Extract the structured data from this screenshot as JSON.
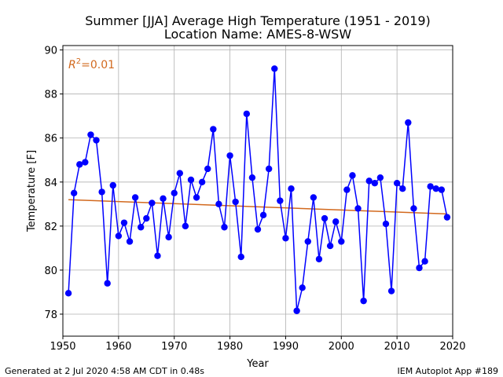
{
  "chart_data": {
    "type": "line",
    "title": "Summer [JJA] Average High Temperature (1951 - 2019)",
    "subtitle": "Location Name: AMES-8-WSW",
    "xlabel": "Year",
    "ylabel": "Temperature [F]",
    "xlim": [
      1950,
      2020
    ],
    "ylim": [
      77,
      90.2
    ],
    "xticks": [
      1950,
      1960,
      1970,
      1980,
      1990,
      2000,
      2010,
      2020
    ],
    "yticks": [
      78,
      80,
      82,
      84,
      86,
      88,
      90
    ],
    "grid": true,
    "annotation": {
      "prefix": "R",
      "sup": "2",
      "suffix": "=0.01"
    },
    "series": [
      {
        "color": "#0000ff",
        "x": [
          1951,
          1952,
          1953,
          1954,
          1955,
          1956,
          1957,
          1958,
          1959,
          1960,
          1961,
          1962,
          1963,
          1964,
          1965,
          1966,
          1967,
          1968,
          1969,
          1970,
          1971,
          1972,
          1973,
          1974,
          1975,
          1976,
          1977,
          1978,
          1979,
          1980,
          1981,
          1982,
          1983,
          1984,
          1985,
          1986,
          1987,
          1988,
          1989,
          1990,
          1991,
          1992,
          1993,
          1994,
          1995,
          1996,
          1997,
          1998,
          1999,
          2000,
          2001,
          2002,
          2003,
          2004,
          2005,
          2006,
          2007,
          2008,
          2009,
          2010,
          2011,
          2012,
          2013,
          2014,
          2015,
          2016,
          2017,
          2018,
          2019
        ],
        "values": [
          78.95,
          83.5,
          84.8,
          84.9,
          86.15,
          85.9,
          83.55,
          79.4,
          83.85,
          81.55,
          82.15,
          81.3,
          83.3,
          81.95,
          82.35,
          83.05,
          80.65,
          83.25,
          81.5,
          83.5,
          84.4,
          82.0,
          84.1,
          83.3,
          84.0,
          84.6,
          86.4,
          83.0,
          81.95,
          85.2,
          83.1,
          80.6,
          87.1,
          84.2,
          81.85,
          82.5,
          84.6,
          89.15,
          83.15,
          81.45,
          83.7,
          78.15,
          79.2,
          81.3,
          83.3,
          80.5,
          82.35,
          81.1,
          82.2,
          81.3,
          83.65,
          84.3,
          82.8,
          78.6,
          84.05,
          83.95,
          84.2,
          82.1,
          79.05,
          83.95,
          83.7,
          86.7,
          82.8,
          80.1,
          80.4,
          83.8,
          83.7,
          83.65,
          82.4
        ]
      },
      {
        "color": "#d2691e",
        "x": [
          1951,
          2019
        ],
        "values": [
          83.2,
          82.55
        ]
      }
    ]
  },
  "footer": {
    "left": "Generated at 2 Jul 2020 4:58 AM CDT in 0.48s",
    "right": "IEM Autoplot App #189"
  }
}
